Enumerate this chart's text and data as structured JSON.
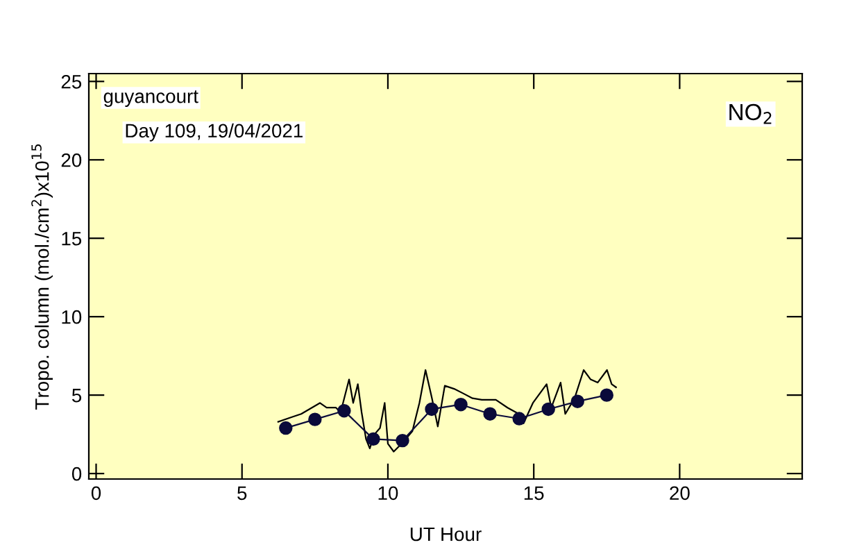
{
  "chart_data": {
    "type": "line",
    "xlabel": "UT Hour",
    "ylabel": "Tropo. column (mol./cm$^{2}$)x10$^{15}$",
    "annotations": [
      "guyancourt",
      "Day 109, 19/04/2021",
      "NO$_{2}$"
    ],
    "xlim": [
      -0.25,
      24.2
    ],
    "ylim": [
      -0.35,
      25.5
    ],
    "xticks": [
      0,
      5,
      10,
      15,
      20
    ],
    "yticks": [
      0,
      5,
      10,
      15,
      20,
      25
    ],
    "grid": false,
    "legend": false,
    "series": [
      {
        "color": "#000000",
        "marker": "none",
        "x": [
          6.24,
          6.71,
          7.03,
          7.67,
          7.9,
          8.22,
          8.38,
          8.67,
          8.81,
          8.97,
          9.1,
          9.25,
          9.38,
          9.54,
          9.73,
          9.89,
          10.0,
          10.2,
          10.52,
          10.84,
          11.08,
          11.29,
          11.51,
          11.71,
          11.95,
          12.27,
          12.59,
          12.9,
          13.22,
          13.7,
          14.1,
          14.49,
          14.65,
          14.97,
          15.44,
          15.6,
          15.92,
          16.08,
          16.4,
          16.71,
          16.95,
          17.19,
          17.51,
          17.67,
          17.82
        ],
        "values": [
          3.3,
          3.6,
          3.8,
          4.5,
          4.2,
          4.2,
          3.9,
          6.0,
          4.5,
          5.7,
          3.9,
          2.2,
          1.6,
          2.5,
          2.9,
          4.5,
          1.9,
          1.4,
          2.0,
          2.7,
          4.5,
          6.6,
          4.8,
          3.0,
          5.6,
          5.4,
          5.1,
          4.8,
          4.7,
          4.7,
          4.2,
          3.8,
          3.2,
          4.5,
          5.7,
          4.2,
          5.8,
          3.8,
          4.8,
          6.6,
          6.0,
          5.8,
          6.6,
          5.7,
          5.5
        ]
      },
      {
        "color": "#0a0a3a",
        "marker": "circle",
        "x": [
          6.5,
          7.5,
          8.5,
          9.5,
          10.5,
          11.5,
          12.5,
          13.5,
          14.5,
          15.5,
          16.5,
          17.5
        ],
        "values": [
          2.9,
          3.45,
          4.0,
          2.2,
          2.1,
          4.1,
          4.4,
          3.8,
          3.5,
          4.1,
          4.6,
          5.0
        ]
      }
    ]
  }
}
